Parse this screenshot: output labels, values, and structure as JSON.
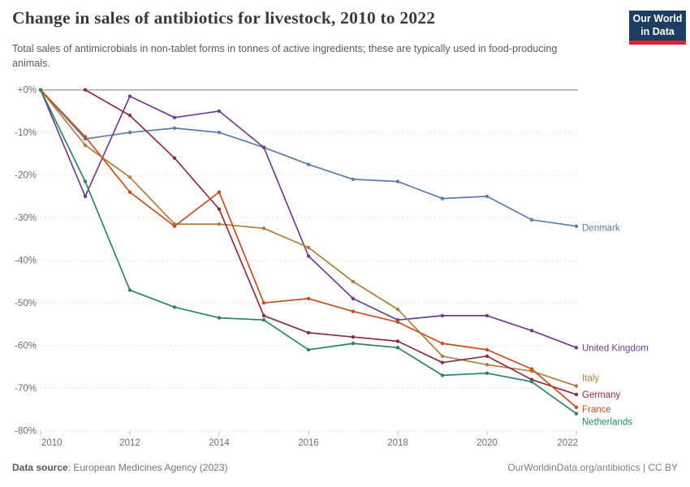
{
  "header": {
    "title": "Change in sales of antibiotics for livestock, 2010 to 2022",
    "subtitle": "Total sales of antimicrobials in non-tablet forms in tonnes of active ingredients; these are typically used in food-producing animals.",
    "logo": {
      "line1": "Our World",
      "line2": "in Data"
    }
  },
  "footer": {
    "source_label": "Data source",
    "source_rest": ": European Medicines Agency (2023)",
    "credit": "OurWorldinData.org/antibiotics | CC BY"
  },
  "colors": {
    "background": "#ffffff",
    "gridline": "#e0e0e0",
    "zero_line": "#a6a6a6",
    "axis_text": "#6e6e6e",
    "logo_bg": "#1d3d63",
    "logo_bar": "#e0232e"
  },
  "chart_data": {
    "type": "line",
    "title": "Change in sales of antibiotics for livestock, 2010 to 2022",
    "xlabel": "",
    "ylabel": "",
    "x": [
      2010,
      2011,
      2012,
      2013,
      2014,
      2015,
      2016,
      2017,
      2018,
      2019,
      2020,
      2021,
      2022
    ],
    "xlim": [
      2010,
      2022
    ],
    "ylim": [
      -80,
      0
    ],
    "grid": "horizontal-dashed",
    "legend_position": "line-end-labels",
    "xticks": [
      2010,
      2012,
      2014,
      2016,
      2018,
      2020,
      2022
    ],
    "xtick_labels": [
      "2010",
      "2012",
      "2014",
      "2016",
      "2018",
      "2020",
      "2022"
    ],
    "yticks": [
      0,
      -10,
      -20,
      -30,
      -40,
      -50,
      -60,
      -70,
      -80
    ],
    "ytick_labels": [
      "+0%",
      "-10%",
      "-20%",
      "-30%",
      "-40%",
      "-50%",
      "-60%",
      "-70%",
      "-80%"
    ],
    "unit": "%",
    "series": [
      {
        "name": "Denmark",
        "color": "#5b7ca9",
        "label_dy": 2,
        "values": [
          0,
          -11.5,
          -10,
          -9,
          -10,
          -13.5,
          -17.5,
          -21,
          -21.5,
          -25.5,
          -25,
          -30.5,
          -32
        ]
      },
      {
        "name": "United Kingdom",
        "color": "#6d3e91",
        "label_dy": 0,
        "values": [
          0,
          -25,
          -1.5,
          -6.5,
          -5,
          -13.5,
          -39,
          -49,
          -54,
          -53,
          -53,
          -56.5,
          -60.5
        ]
      },
      {
        "name": "Italy",
        "color": "#af7e38",
        "label_dy": -10,
        "values": [
          0,
          -13,
          -20.5,
          -31.5,
          -31.5,
          -32.5,
          -37,
          -45,
          -51.5,
          -62.5,
          -64.5,
          -66,
          -69.5
        ]
      },
      {
        "name": "Germany",
        "color": "#8b2e3f",
        "label_dy": 0,
        "values": [
          null,
          0,
          -6,
          -16,
          -28,
          -53,
          -57,
          -58,
          -59,
          -64,
          -62.5,
          -68,
          -71.5
        ]
      },
      {
        "name": "France",
        "color": "#c94d1c",
        "label_dy": 2,
        "values": [
          0,
          -11,
          -24,
          -32,
          -24,
          -50,
          -49,
          -52,
          -54.5,
          -59.5,
          -61,
          -65.5,
          -74.5
        ]
      },
      {
        "name": "Netherlands",
        "color": "#2c8465",
        "label_dy": 10,
        "values": [
          0,
          -21.5,
          -47,
          -51,
          -53.5,
          -54,
          -61,
          -59.5,
          -60.5,
          -67,
          -66.5,
          -68.5,
          -76
        ]
      }
    ]
  }
}
